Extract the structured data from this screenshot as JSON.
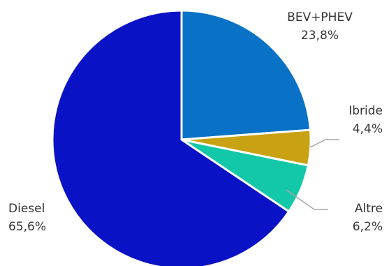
{
  "chart_data": {
    "type": "pie",
    "slices": [
      {
        "label": "BEV+PHEV",
        "value_text": "23,8%",
        "value": 23.8,
        "color": "#0a72c6"
      },
      {
        "label": "Ibride",
        "value_text": "4,4%",
        "value": 4.4,
        "color": "#c8a213"
      },
      {
        "label": "Altre",
        "value_text": "6,2%",
        "value": 6.2,
        "color": "#12c8a8"
      },
      {
        "label": "Diesel",
        "value_text": "65,6%",
        "value": 65.6,
        "color": "#0a12c6"
      }
    ],
    "start_angle_deg": 0,
    "direction": "clockwise",
    "slice_border_color": "#ffffff",
    "leader_line_color": "#a6a6a6",
    "label_color": "#333333"
  }
}
